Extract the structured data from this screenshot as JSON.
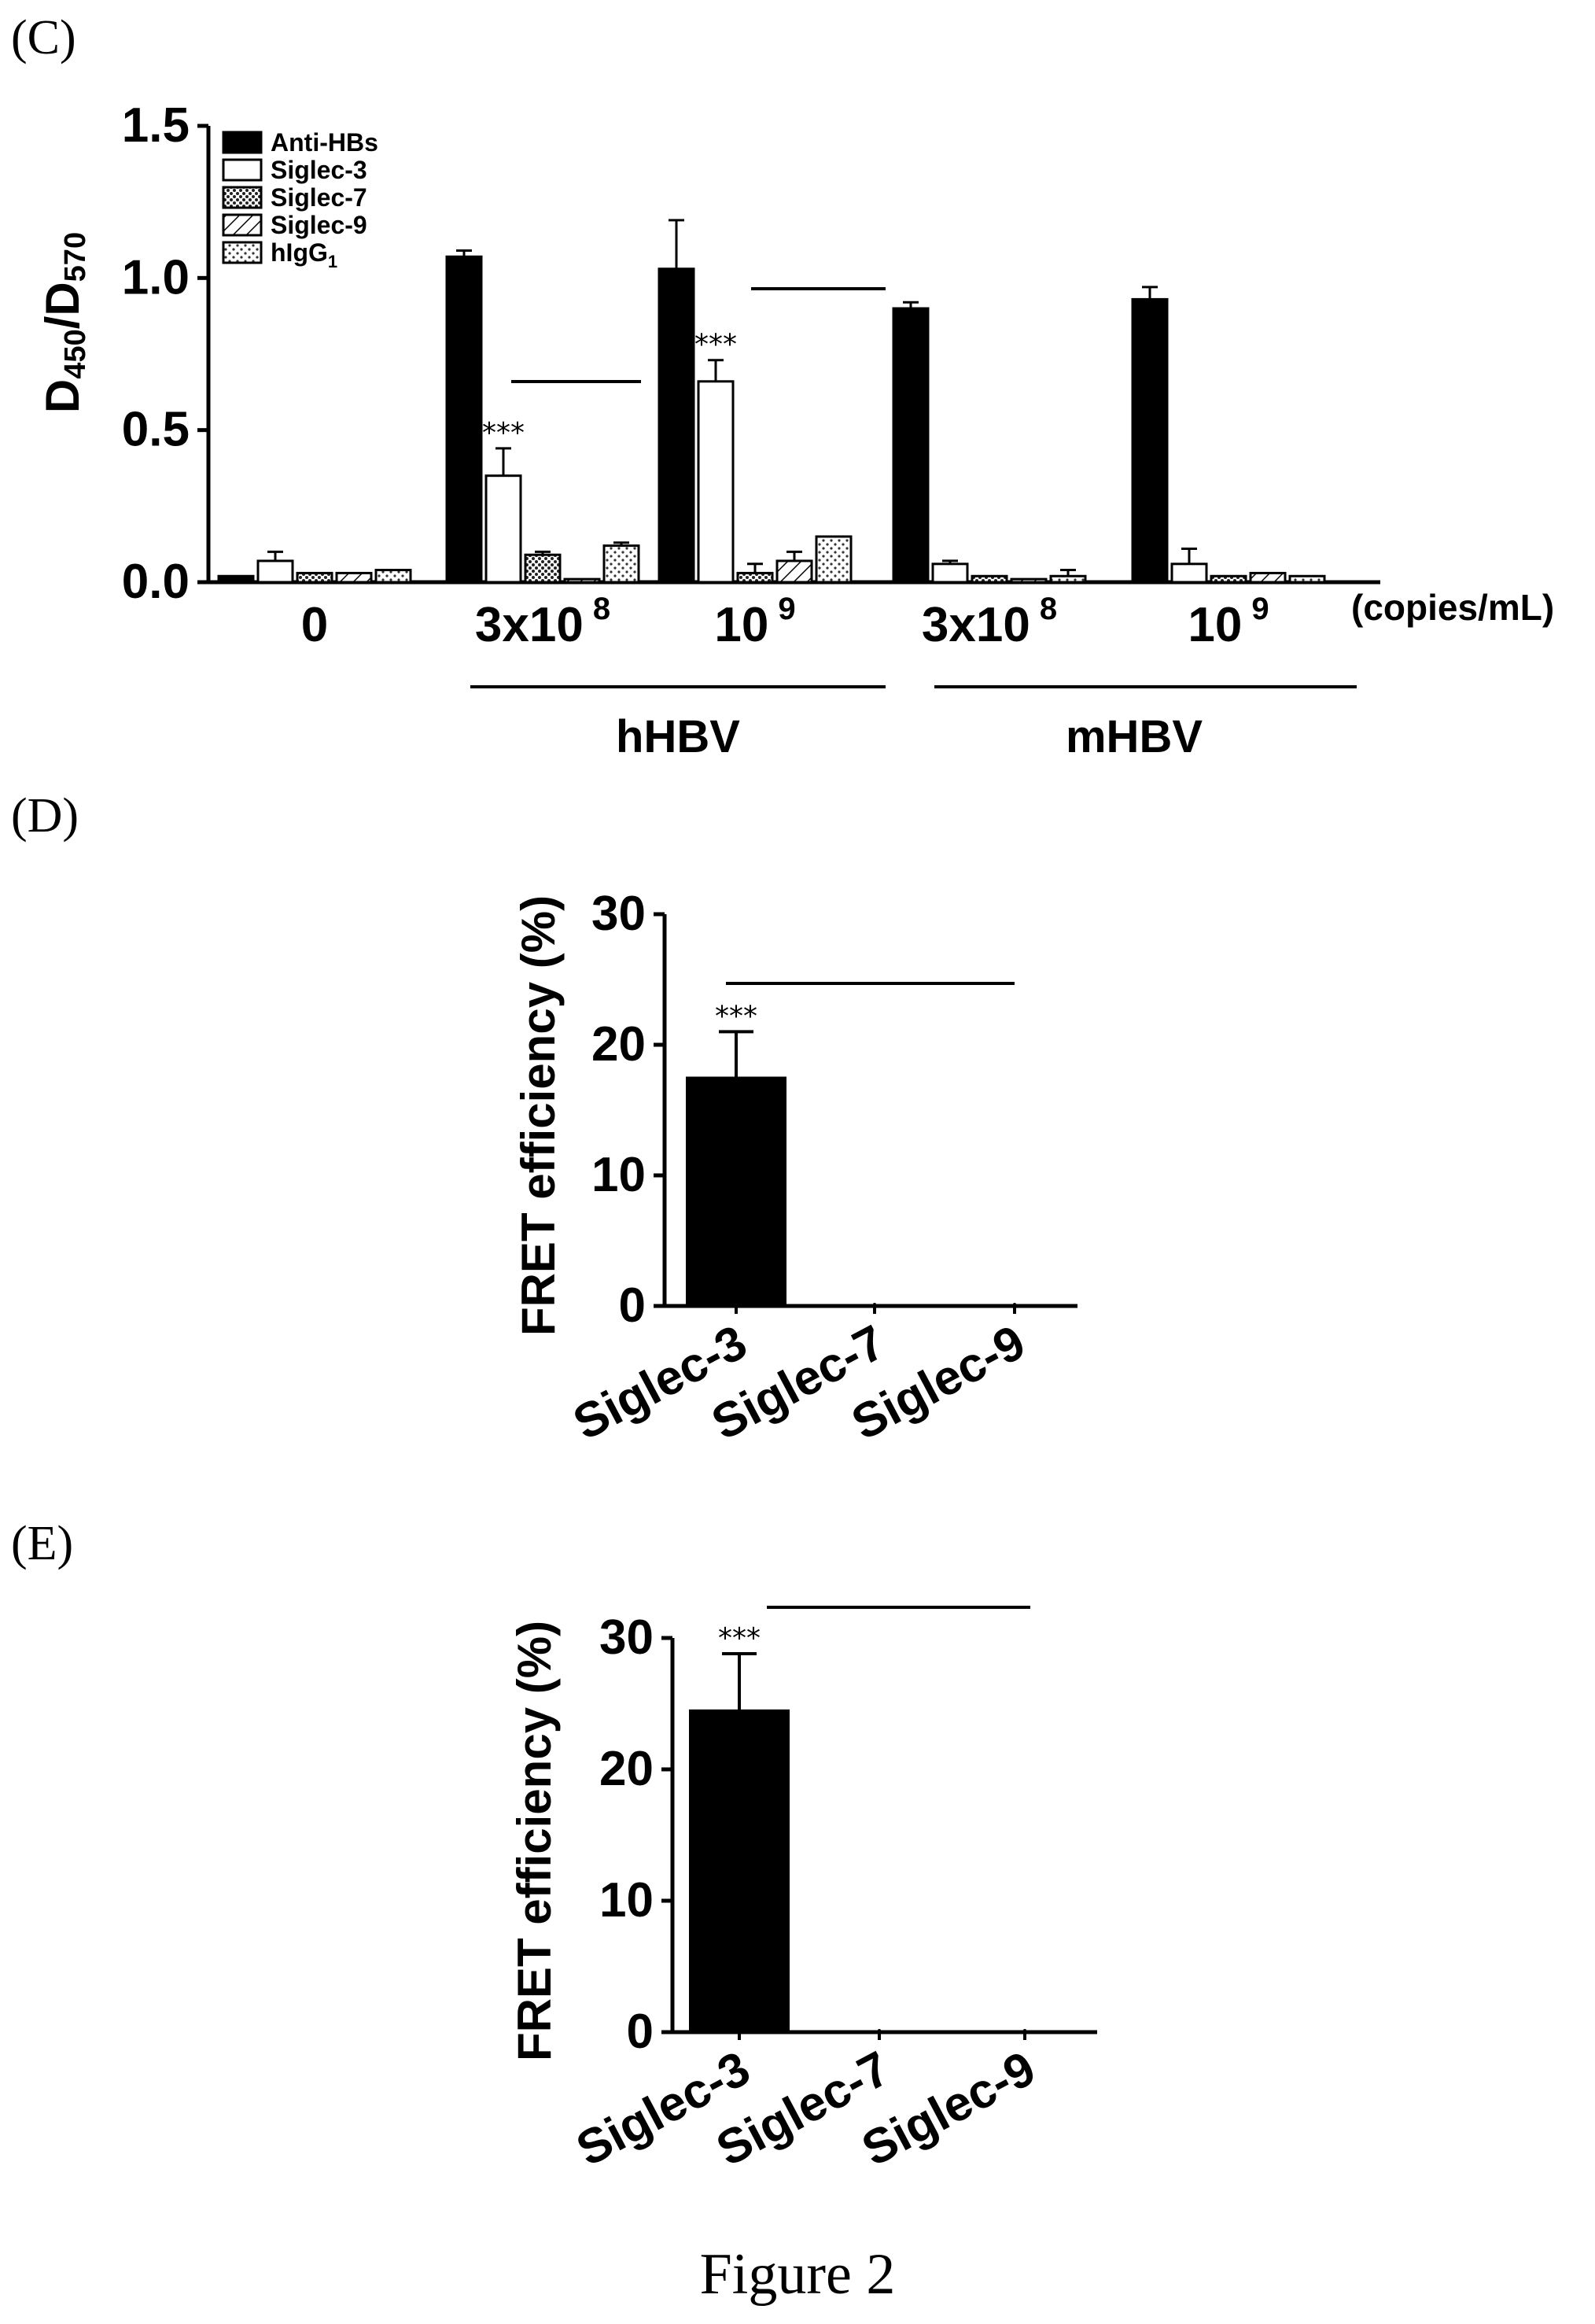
{
  "figure_caption": "Figure 2",
  "chart_data": [
    {
      "panel": "(C)",
      "type": "bar",
      "ylabel": "D 450/D 570",
      "ylabel_parts": {
        "d1": "D",
        "s1": "450",
        "sep": "/D",
        "s2": "570"
      },
      "ylim": [
        0,
        1.5
      ],
      "yticks": [
        "0.0",
        "0.5",
        "1.0",
        "1.5"
      ],
      "units_label": "(copies/mL)",
      "categories": [
        {
          "base": "0",
          "sup": ""
        },
        {
          "base": "3x10",
          "sup": "8"
        },
        {
          "base": "10",
          "sup": "9"
        },
        {
          "base": "3x10",
          "sup": "8"
        },
        {
          "base": "10",
          "sup": "9"
        }
      ],
      "groups": [
        "hHBV",
        "mHBV"
      ],
      "legend": [
        "Anti-HBs",
        "Siglec-3",
        "Siglec-7",
        "Siglec-9",
        "hIgG"
      ],
      "legend_sub": "1",
      "series": [
        {
          "name": "Anti-HBs",
          "fill": "#000000",
          "values": [
            0.02,
            1.07,
            1.03,
            0.9,
            0.93
          ],
          "errors": [
            0,
            0.02,
            0.16,
            0.02,
            0.04
          ]
        },
        {
          "name": "Siglec-3",
          "fill": "#ffffff",
          "values": [
            0.07,
            0.35,
            0.66,
            0.06,
            0.06
          ],
          "errors": [
            0.03,
            0.09,
            0.07,
            0.01,
            0.05
          ]
        },
        {
          "name": "Siglec-7",
          "fill": "dots",
          "values": [
            0.03,
            0.09,
            0.03,
            0.02,
            0.02
          ],
          "errors": [
            0,
            0.01,
            0.03,
            0,
            0
          ]
        },
        {
          "name": "Siglec-9",
          "fill": "hatch",
          "values": [
            0.03,
            0.01,
            0.07,
            0.01,
            0.03
          ],
          "errors": [
            0,
            0,
            0.03,
            0,
            0
          ]
        },
        {
          "name": "hIgG1",
          "fill": "light-dots",
          "values": [
            0.04,
            0.12,
            0.15,
            0.02,
            0.02
          ],
          "errors": [
            0,
            0.01,
            0,
            0.02,
            0
          ]
        }
      ],
      "annotations": [
        {
          "text": "***",
          "category": 1,
          "series": 1
        },
        {
          "text": "***",
          "category": 2,
          "series": 1
        }
      ]
    },
    {
      "panel": "(D)",
      "type": "bar",
      "ylabel": "FRET efficiency (%)",
      "ylim": [
        0,
        30
      ],
      "yticks": [
        "0",
        "10",
        "20",
        "30"
      ],
      "categories": [
        "Siglec-3",
        "Siglec-7",
        "Siglec-9"
      ],
      "values": [
        17.5,
        0,
        0
      ],
      "errors": [
        3.5,
        0,
        0
      ],
      "annotations": [
        {
          "text": "***",
          "category": 0
        }
      ]
    },
    {
      "panel": "(E)",
      "type": "bar",
      "ylabel": "FRET efficiency (%)",
      "ylim": [
        0,
        30
      ],
      "yticks": [
        "0",
        "10",
        "20",
        "30"
      ],
      "categories": [
        "Siglec-3",
        "Siglec-7",
        "Siglec-9"
      ],
      "values": [
        24.5,
        0,
        0
      ],
      "errors": [
        4.3,
        0,
        0
      ],
      "annotations": [
        {
          "text": "***",
          "category": 0
        }
      ]
    }
  ]
}
